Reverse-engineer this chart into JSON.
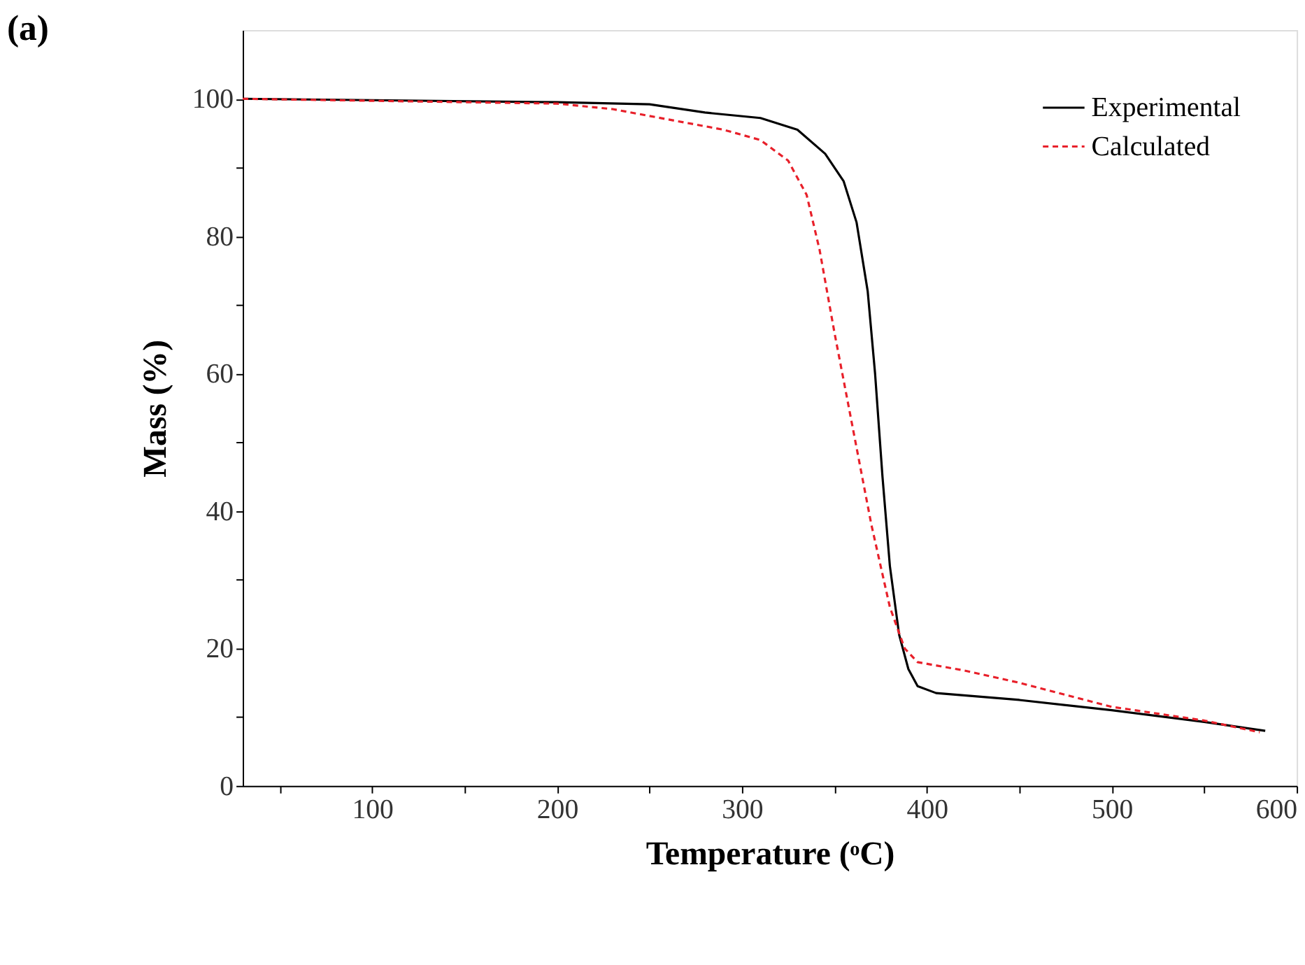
{
  "chart_data": {
    "type": "line",
    "title": "(a)",
    "xlabel": "Temperature (ᵒC)",
    "ylabel": "Mass (%)",
    "xlim": [
      30,
      600
    ],
    "ylim": [
      0,
      110
    ],
    "xticks": [
      {
        "value": 50,
        "label": null
      },
      100,
      {
        "value": 150,
        "label": null
      },
      200,
      {
        "value": 250,
        "label": null
      },
      300,
      {
        "value": 350,
        "label": null
      },
      400,
      {
        "value": 450,
        "label": null
      },
      500,
      {
        "value": 550,
        "label": null
      },
      600
    ],
    "yticks": [
      0,
      {
        "value": 10,
        "label": null
      },
      20,
      {
        "value": 30,
        "label": null
      },
      40,
      {
        "value": 50,
        "label": null
      },
      60,
      {
        "value": 70,
        "label": null
      },
      80,
      {
        "value": 90,
        "label": null
      },
      100
    ],
    "legend": "top right",
    "grid": false,
    "series": [
      {
        "name": "Experimental",
        "color": "#000000",
        "line_style": "solid",
        "x": [
          30,
          100,
          200,
          250,
          280,
          310,
          330,
          345,
          355,
          362,
          368,
          372,
          376,
          380,
          385,
          390,
          395,
          405,
          450,
          500,
          550,
          583
        ],
        "values": [
          100,
          99.8,
          99.5,
          99.2,
          98,
          97.2,
          95.5,
          92,
          88,
          82,
          72,
          60,
          45,
          32,
          22,
          17,
          14.5,
          13.5,
          12.5,
          11,
          9.3,
          8
        ]
      },
      {
        "name": "Calculated",
        "color": "#e8202a",
        "line_style": "dashed",
        "x": [
          30,
          200,
          230,
          260,
          290,
          310,
          325,
          335,
          342,
          350,
          360,
          370,
          380,
          388,
          395,
          420,
          450,
          500,
          550,
          580
        ],
        "values": [
          100,
          99.3,
          98.5,
          97,
          95.5,
          94,
          91,
          86,
          78,
          66,
          52,
          38,
          26,
          20,
          18,
          16.8,
          15,
          11.5,
          9.5,
          7.8
        ]
      }
    ]
  }
}
